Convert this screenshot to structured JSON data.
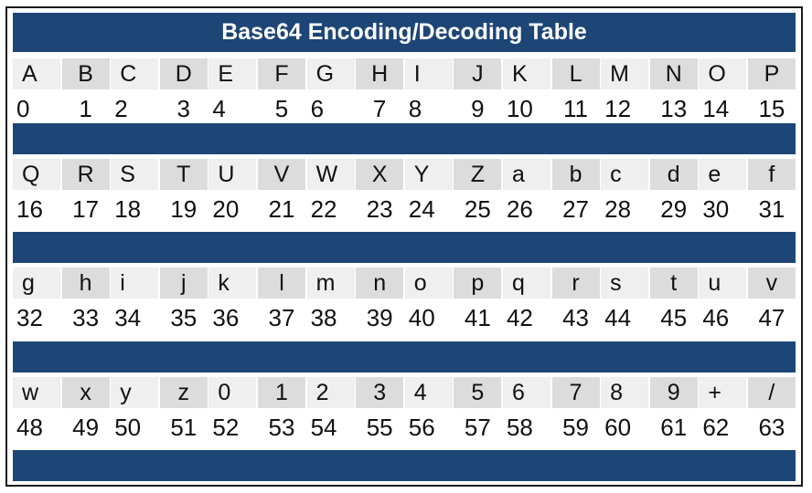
{
  "title": "Base64 Encoding/Decoding Table",
  "colors": {
    "header": "#1d4677",
    "cell_light": "#efefef",
    "cell_dark": "#dcdcdc"
  },
  "groups": [
    {
      "symbols": [
        "A",
        "B",
        "C",
        "D",
        "E",
        "F",
        "G",
        "H",
        "I",
        "J",
        "K",
        "L",
        "M",
        "N",
        "O",
        "P"
      ],
      "values": [
        "0",
        "1",
        "2",
        "3",
        "4",
        "5",
        "6",
        "7",
        "8",
        "9",
        "10",
        "11",
        "12",
        "13",
        "14",
        "15"
      ]
    },
    {
      "symbols": [
        "Q",
        "R",
        "S",
        "T",
        "U",
        "V",
        "W",
        "X",
        "Y",
        "Z",
        "a",
        "b",
        "c",
        "d",
        "e",
        "f"
      ],
      "values": [
        "16",
        "17",
        "18",
        "19",
        "20",
        "21",
        "22",
        "23",
        "24",
        "25",
        "26",
        "27",
        "28",
        "29",
        "30",
        "31"
      ]
    },
    {
      "symbols": [
        "g",
        "h",
        "i",
        "j",
        "k",
        "l",
        "m",
        "n",
        "o",
        "p",
        "q",
        "r",
        "s",
        "t",
        "u",
        "v"
      ],
      "values": [
        "32",
        "33",
        "34",
        "35",
        "36",
        "37",
        "38",
        "39",
        "40",
        "41",
        "42",
        "43",
        "44",
        "45",
        "46",
        "47"
      ]
    },
    {
      "symbols": [
        "w",
        "x",
        "y",
        "z",
        "0",
        "1",
        "2",
        "3",
        "4",
        "5",
        "6",
        "7",
        "8",
        "9",
        "+",
        "/"
      ],
      "values": [
        "48",
        "49",
        "50",
        "51",
        "52",
        "53",
        "54",
        "55",
        "56",
        "57",
        "58",
        "59",
        "60",
        "61",
        "62",
        "63"
      ]
    }
  ]
}
